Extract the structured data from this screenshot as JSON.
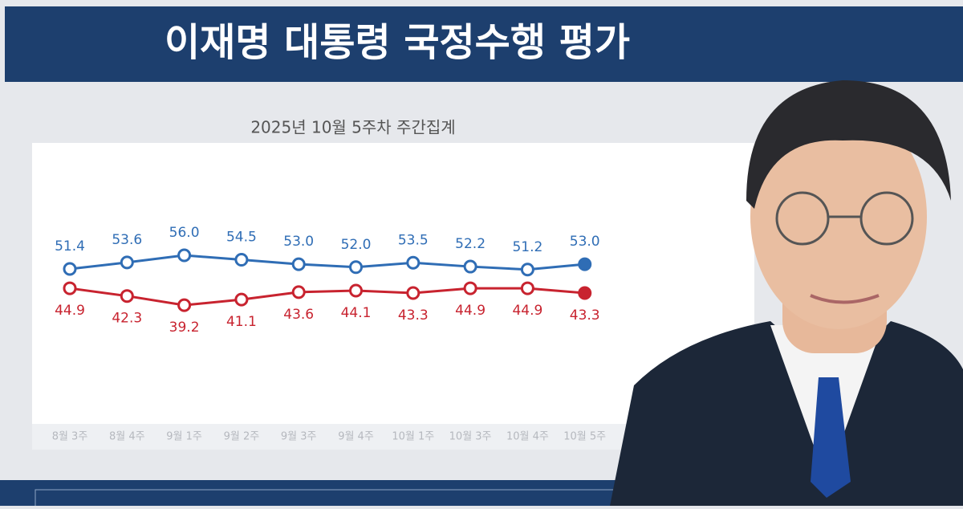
{
  "chart_data": {
    "type": "line",
    "title": "이재명 대통령 국정수행 평가",
    "subtitle": "2025년 10월 5주차 주간집계",
    "categories": [
      "8월 3주",
      "8월 4주",
      "9월 1주",
      "9월 2주",
      "9월 3주",
      "9월 4주",
      "10월 1주",
      "10월 3주",
      "10월 4주",
      "10월 5주"
    ],
    "series": [
      {
        "color": "#2f6db5",
        "values": [
          51.4,
          53.6,
          56.0,
          54.5,
          53.0,
          52.0,
          53.5,
          52.2,
          51.2,
          53.0
        ],
        "value_labels": [
          "51.4",
          "53.6",
          "56.0",
          "54.5",
          "53.0",
          "52.0",
          "53.5",
          "52.2",
          "51.2",
          "53.0"
        ]
      },
      {
        "color": "#c8232f",
        "values": [
          44.9,
          42.3,
          39.2,
          41.1,
          43.6,
          44.1,
          43.3,
          44.9,
          44.9,
          43.3
        ],
        "value_labels": [
          "44.9",
          "42.3",
          "39.2",
          "41.1",
          "43.6",
          "44.1",
          "43.3",
          "44.9",
          "44.9",
          "43.3"
        ]
      }
    ]
  }
}
